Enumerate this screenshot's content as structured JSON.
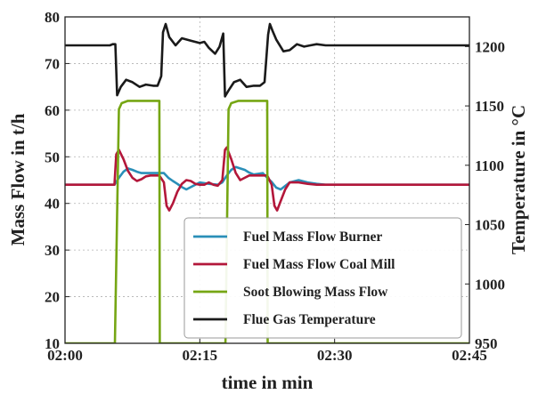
{
  "chart_data": {
    "type": "line",
    "xlabel": "time in min",
    "ylabel_left": "Mass Flow in t/h",
    "ylabel_right": "Temperature in °C",
    "xlim": [
      0,
      45
    ],
    "ylim_left": [
      10,
      80
    ],
    "ylim_right": [
      950,
      1225
    ],
    "x_ticks": [
      0,
      15,
      30,
      45
    ],
    "x_tick_labels": [
      "02:00",
      "02:15",
      "02:30",
      "02:45"
    ],
    "y_ticks_left": [
      10,
      20,
      30,
      40,
      50,
      60,
      70,
      80
    ],
    "y_ticks_right": [
      950,
      1000,
      1050,
      1100,
      1150,
      1200
    ],
    "grid": true,
    "legend_position": "bottom-right",
    "series": [
      {
        "name": "Fuel Mass Flow Burner",
        "axis": "left",
        "color": "#2a8fb8",
        "x": [
          0,
          5.5,
          6.0,
          6.5,
          7.0,
          7.5,
          8.0,
          8.5,
          9.0,
          10.0,
          11.0,
          11.5,
          12.0,
          12.5,
          13.0,
          13.5,
          14.0,
          15.0,
          16.0,
          17.0,
          17.5,
          18.0,
          18.5,
          19.0,
          19.5,
          20.0,
          20.5,
          21.0,
          22.0,
          22.5,
          23.0,
          23.5,
          24.0,
          25.0,
          26.0,
          27.0,
          28.0,
          29.0,
          30.0,
          45.0
        ],
        "y": [
          44,
          44,
          45.5,
          46.8,
          47.5,
          47.2,
          46.8,
          46.5,
          46.5,
          46.5,
          46.5,
          45.5,
          44.8,
          44.2,
          43.5,
          43.0,
          43.5,
          44.5,
          44.2,
          44.0,
          44.5,
          46.0,
          47.2,
          47.8,
          47.5,
          47.2,
          46.6,
          46.2,
          46.5,
          45.5,
          44.6,
          43.4,
          43.0,
          44.5,
          45.0,
          44.5,
          44.2,
          44.0,
          44.0,
          44.0
        ]
      },
      {
        "name": "Fuel Mass Flow Coal Mill",
        "axis": "left",
        "color": "#b3173a",
        "x": [
          0,
          5.5,
          5.7,
          6.0,
          6.5,
          7.0,
          7.5,
          8.0,
          8.5,
          9.0,
          9.5,
          10.0,
          10.5,
          11.0,
          11.3,
          11.6,
          12.0,
          12.5,
          13.0,
          13.5,
          14.0,
          14.5,
          15.0,
          15.5,
          16.0,
          16.5,
          17.0,
          17.5,
          17.8,
          18.0,
          18.5,
          19.0,
          19.5,
          20.0,
          20.5,
          21.0,
          21.5,
          22.0,
          22.5,
          23.0,
          23.3,
          23.6,
          24.0,
          24.5,
          25.0,
          26.0,
          27.0,
          28.0,
          45.0
        ],
        "y": [
          44,
          44,
          50.5,
          51.5,
          49.5,
          47.0,
          45.5,
          44.8,
          45.2,
          45.8,
          46.0,
          46.0,
          46.0,
          44.5,
          39.5,
          38.5,
          40.0,
          42.5,
          44.2,
          45.0,
          44.8,
          44.2,
          44.0,
          44.0,
          44.5,
          44.0,
          43.8,
          45.0,
          51.5,
          52.0,
          49.5,
          46.5,
          45.0,
          45.5,
          46.0,
          46.0,
          46.0,
          46.0,
          46.0,
          44.0,
          39.5,
          38.5,
          40.5,
          43.0,
          44.5,
          44.5,
          44.2,
          44.0,
          44.0
        ]
      },
      {
        "name": "Soot Blowing Mass Flow",
        "axis": "left",
        "color": "#76a614",
        "x": [
          0,
          5.5,
          5.55,
          6.0,
          6.3,
          7.0,
          8.0,
          10.5,
          10.55,
          10.6,
          17.8,
          17.85,
          18.2,
          18.5,
          19.3,
          20.0,
          22.5,
          22.55,
          22.6,
          45.0
        ],
        "y": [
          10,
          10,
          10,
          60.2,
          61.5,
          62.0,
          62.0,
          62.0,
          10,
          10,
          10,
          10,
          60.2,
          61.5,
          62.0,
          62.0,
          62.0,
          10,
          10,
          10
        ]
      },
      {
        "name": "Flue Gas Temperature",
        "axis": "right",
        "color": "#1a1a1a",
        "x": [
          0,
          4.0,
          5.0,
          5.3,
          5.6,
          5.8,
          6.2,
          6.8,
          7.5,
          8.3,
          9.0,
          9.8,
          10.3,
          10.7,
          10.9,
          11.2,
          11.6,
          12.3,
          13.0,
          14.0,
          15.0,
          15.5,
          16.0,
          16.7,
          17.2,
          17.6,
          17.8,
          18.2,
          18.8,
          19.5,
          20.2,
          21.0,
          21.7,
          22.2,
          22.6,
          22.8,
          23.1,
          23.5,
          24.3,
          25.0,
          25.8,
          26.6,
          27.3,
          28.0,
          29.0,
          30.0,
          45.0
        ],
        "y": [
          1201,
          1201,
          1201,
          1202,
          1202,
          1159,
          1166,
          1172,
          1170,
          1166,
          1168,
          1167,
          1167,
          1175,
          1212,
          1219,
          1208,
          1201,
          1207,
          1205,
          1203,
          1204,
          1199,
          1194,
          1200,
          1211,
          1158,
          1163,
          1170,
          1172,
          1166,
          1167,
          1167,
          1170,
          1210,
          1219,
          1213,
          1206,
          1196,
          1197,
          1202,
          1200,
          1201,
          1202,
          1201,
          1201,
          1201
        ]
      }
    ]
  }
}
